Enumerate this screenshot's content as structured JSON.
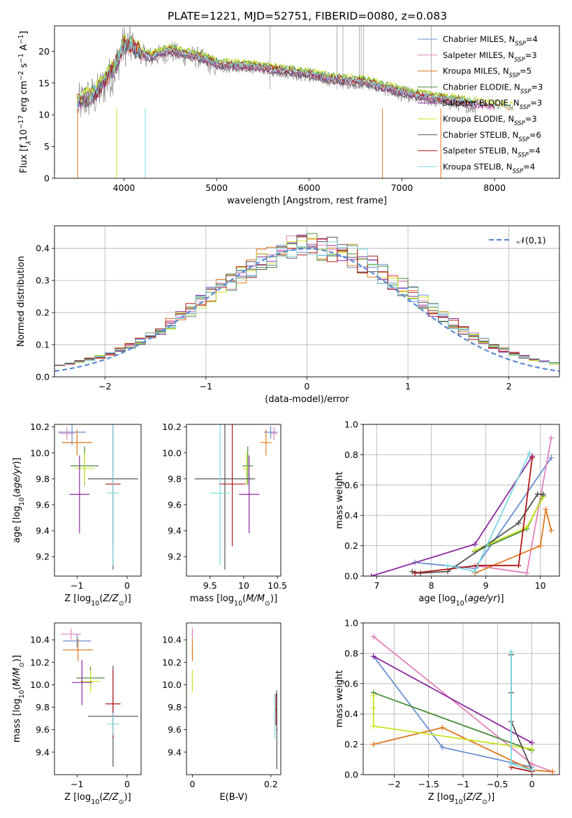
{
  "figure": {
    "title": "PLATE=1221, MJD=52751, FIBERID=0080, z=0.083"
  },
  "chart_data": [
    {
      "id": "spectrum",
      "type": "line",
      "title": "PLATE=1221, MJD=52751, FIBERID=0080, z=0.083",
      "xlabel": "wavelength [Angstrom, rest frame]",
      "ylabel": "Flux [f_λ10^-17 erg cm^-2 s^-1 A^-1]",
      "xlim": [
        3250,
        8700
      ],
      "ylim": [
        0,
        24
      ],
      "xticks": [
        4000,
        5000,
        6000,
        7000,
        8000
      ],
      "yticks": [
        0,
        5,
        10,
        15,
        20
      ],
      "grid": false,
      "legend_position": "top-right",
      "data_spectrum": {
        "color": "#808080",
        "x": [
          3500,
          3600,
          3700,
          3800,
          3900,
          4000,
          4100,
          4200,
          4300,
          4400,
          4500,
          4600,
          4800,
          5000,
          5200,
          5400,
          5600,
          5800,
          6000,
          6200,
          6400,
          6600,
          6800,
          7000,
          7200,
          7400,
          7600,
          7800
        ],
        "y": [
          11.5,
          12.5,
          13,
          15,
          17,
          21,
          20.5,
          19.5,
          19,
          19.5,
          20,
          19.5,
          19,
          17.5,
          17.5,
          17.5,
          17,
          16.5,
          16,
          15.5,
          15,
          15,
          14,
          13,
          12.5,
          12,
          11.5,
          11
        ]
      },
      "series": [
        {
          "name": "Chabrier MILES, N_SSP=4",
          "color": "#6a8ed0"
        },
        {
          "name": "Salpeter MILES, N_SSP=3",
          "color": "#e083bb"
        },
        {
          "name": "Kroupa MILES, N_SSP=5",
          "color": "#e0781e"
        },
        {
          "name": "Chabrier ELODIE, N_SSP=3",
          "color": "#4a8c3a"
        },
        {
          "name": "Salpeter ELODIE, N_SSP=3",
          "color": "#8b2aa0"
        },
        {
          "name": "Kroupa ELODIE, N_SSP=3",
          "color": "#c8e61e"
        },
        {
          "name": "Chabrier STELIB, N_SSP=6",
          "color": "#555555"
        },
        {
          "name": "Salpeter STELIB, N_SSP=4",
          "color": "#b01818"
        },
        {
          "name": "Kroupa STELIB, N_SSP=4",
          "color": "#7fd8e0"
        }
      ],
      "model": {
        "x": [
          3500,
          3600,
          3700,
          3800,
          3900,
          4000,
          4100,
          4200,
          4300,
          4400,
          4500,
          4600,
          4800,
          5000,
          5200,
          5400,
          5600,
          5800,
          6000,
          6200,
          6400,
          6600,
          6800,
          7000,
          7200,
          7400,
          7600,
          7800,
          8000,
          8200,
          8400
        ],
        "y": [
          12,
          12.8,
          13.5,
          15.5,
          17.5,
          21,
          20.8,
          19.5,
          19.2,
          19.8,
          20.2,
          19.8,
          19.2,
          18,
          17.8,
          17.6,
          17.2,
          16.8,
          16.4,
          15.8,
          15.4,
          15.2,
          14.4,
          13.6,
          13,
          12.6,
          12.2,
          11.8,
          11.4,
          11,
          10.6
        ]
      }
    },
    {
      "id": "residuals",
      "type": "step",
      "xlabel": "(data-model)/error",
      "ylabel": "Normed distribution",
      "xlim": [
        -2.5,
        2.5
      ],
      "ylim": [
        0,
        0.47
      ],
      "xticks": [
        -2,
        -1,
        0,
        1,
        2
      ],
      "yticks": [
        0.0,
        0.1,
        0.2,
        0.3,
        0.4
      ],
      "grid": true,
      "legend_position": "top-right",
      "reference": {
        "name": "𝒩(0,1)",
        "color": "#5b8ad0"
      }
    },
    {
      "id": "age_vs_Z",
      "type": "errorbar",
      "xlabel": "Z [log10(Z/Z⊙)]",
      "ylabel": "age  [log10(age/yr)]",
      "xlim": [
        -1.45,
        0.28
      ],
      "ylim": [
        9.05,
        10.22
      ],
      "xticks": [
        -1,
        0
      ],
      "yticks": [
        9.2,
        9.4,
        9.6,
        9.8,
        10.0,
        10.2
      ],
      "points": [
        {
          "color": "#6a8ed0",
          "x": -1.1,
          "xerr": 0.28,
          "y": 10.16,
          "yerr": 0.1
        },
        {
          "color": "#e083bb",
          "x": -1.2,
          "xerr": 0.15,
          "y": 10.15,
          "yerr": 0.05
        },
        {
          "color": "#e0781e",
          "x": -1.0,
          "xerr": 0.3,
          "y": 10.08,
          "yerr": 0.1
        },
        {
          "color": "#4a8c3a",
          "x": -0.85,
          "xerr": 0.28,
          "y": 9.9,
          "yerr": 0.15
        },
        {
          "color": "#c8e61e",
          "x": -0.85,
          "xerr": 0.2,
          "y": 9.88,
          "yerr": 0.12
        },
        {
          "color": "#8b2aa0",
          "x": -0.95,
          "xerr": 0.2,
          "y": 9.68,
          "yerr": 0.3
        },
        {
          "color": "#555555",
          "x": -0.28,
          "xerr": 0.5,
          "y": 9.8,
          "yerr": 0.7
        },
        {
          "color": "#b01818",
          "x": -0.28,
          "xerr": 0.15,
          "y": 9.76,
          "yerr": 0.48
        },
        {
          "color": "#7fd8e0",
          "x": -0.28,
          "xerr": 0.12,
          "y": 9.69,
          "yerr": 0.56
        }
      ]
    },
    {
      "id": "age_vs_mass",
      "type": "errorbar",
      "xlabel": "mass [log10(M/M⊙)]",
      "ylabel": "",
      "xlim": [
        9.15,
        10.55
      ],
      "ylim": [
        9.05,
        10.22
      ],
      "xticks": [
        9.5,
        10.0,
        10.5
      ],
      "yticks": [
        9.2,
        9.4,
        9.6,
        9.8,
        10.0,
        10.2
      ],
      "points": [
        {
          "color": "#6a8ed0",
          "x": 10.4,
          "xerr": 0.1,
          "y": 10.16,
          "yerr": 0.05
        },
        {
          "color": "#e083bb",
          "x": 10.45,
          "xerr": 0.05,
          "y": 10.15,
          "yerr": 0.05
        },
        {
          "color": "#e0781e",
          "x": 10.33,
          "xerr": 0.08,
          "y": 10.08,
          "yerr": 0.1
        },
        {
          "color": "#4a8c3a",
          "x": 10.06,
          "xerr": 0.08,
          "y": 9.9,
          "yerr": 0.15
        },
        {
          "color": "#c8e61e",
          "x": 10.04,
          "xerr": 0.05,
          "y": 9.88,
          "yerr": 0.12
        },
        {
          "color": "#8b2aa0",
          "x": 10.08,
          "xerr": 0.15,
          "y": 9.68,
          "yerr": 0.3
        },
        {
          "color": "#555555",
          "x": 9.72,
          "xerr": 0.45,
          "y": 9.8,
          "yerr": 0.7
        },
        {
          "color": "#b01818",
          "x": 9.83,
          "xerr": 0.2,
          "y": 9.76,
          "yerr": 0.48
        },
        {
          "color": "#7fd8e0",
          "x": 9.65,
          "xerr": 0.15,
          "y": 9.69,
          "yerr": 0.56
        }
      ]
    },
    {
      "id": "weight_vs_age",
      "type": "line",
      "xlabel": "age  [log10(age/yr)]",
      "ylabel": "mass weight",
      "xlim": [
        6.75,
        10.35
      ],
      "ylim": [
        0,
        1.0
      ],
      "xticks": [
        7,
        8,
        9,
        10
      ],
      "yticks": [
        0.0,
        0.2,
        0.4,
        0.6,
        0.8,
        1.0
      ],
      "grid": true,
      "series": [
        {
          "color": "#6a8ed0",
          "x": [
            7.7,
            8.8,
            10.2
          ],
          "y": [
            0.09,
            0.05,
            0.78
          ]
        },
        {
          "color": "#e083bb",
          "x": [
            8.8,
            9.75,
            10.2
          ],
          "y": [
            0.07,
            0.02,
            0.91
          ]
        },
        {
          "color": "#e0781e",
          "x": [
            8.8,
            10.0,
            10.1,
            10.2
          ],
          "y": [
            0.02,
            0.2,
            0.44,
            0.3
          ]
        },
        {
          "color": "#4a8c3a",
          "x": [
            8.8,
            9.75,
            10.05
          ],
          "y": [
            0.16,
            0.31,
            0.53
          ]
        },
        {
          "color": "#8b2aa0",
          "x": [
            6.9,
            8.8,
            9.85
          ],
          "y": [
            0.0,
            0.21,
            0.79
          ]
        },
        {
          "color": "#c8e61e",
          "x": [
            8.8,
            9.75,
            10.05
          ],
          "y": [
            0.17,
            0.32,
            0.52
          ]
        },
        {
          "color": "#555555",
          "x": [
            7.65,
            7.8,
            8.3,
            9.6,
            9.95,
            10.05
          ],
          "y": [
            0.03,
            0.02,
            0.03,
            0.35,
            0.54,
            0.54
          ]
        },
        {
          "color": "#b01818",
          "x": [
            7.7,
            8.85,
            9.6,
            9.85
          ],
          "y": [
            0.02,
            0.07,
            0.07,
            0.78
          ]
        },
        {
          "color": "#7fd8e0",
          "x": [
            8.3,
            8.8,
            9.8
          ],
          "y": [
            0.07,
            0.03,
            0.81
          ]
        }
      ]
    },
    {
      "id": "mass_vs_Z",
      "type": "errorbar",
      "xlabel": "Z [log10(Z/Z⊙)]",
      "ylabel": "mass [log10(M/M⊙)]",
      "xlim": [
        -1.45,
        0.28
      ],
      "ylim": [
        9.2,
        10.55
      ],
      "xticks": [
        -1,
        0
      ],
      "yticks": [
        9.4,
        9.6,
        9.8,
        10.0,
        10.2,
        10.4
      ],
      "points": [
        {
          "color": "#6a8ed0",
          "x": -1.0,
          "xerr": 0.28,
          "y": 10.39,
          "yerr": 0.06
        },
        {
          "color": "#e083bb",
          "x": -1.12,
          "xerr": 0.2,
          "y": 10.45,
          "yerr": 0.05
        },
        {
          "color": "#e0781e",
          "x": -0.98,
          "xerr": 0.3,
          "y": 10.31,
          "yerr": 0.1
        },
        {
          "color": "#4a8c3a",
          "x": -0.73,
          "xerr": 0.28,
          "y": 10.06,
          "yerr": 0.1
        },
        {
          "color": "#c8e61e",
          "x": -0.73,
          "xerr": 0.2,
          "y": 10.03,
          "yerr": 0.1
        },
        {
          "color": "#8b2aa0",
          "x": -0.9,
          "xerr": 0.2,
          "y": 10.02,
          "yerr": 0.2
        },
        {
          "color": "#555555",
          "x": -0.28,
          "xerr": 0.5,
          "y": 9.72,
          "yerr": 0.45
        },
        {
          "color": "#b01818",
          "x": -0.28,
          "xerr": 0.15,
          "y": 9.83,
          "yerr": 0.3
        },
        {
          "color": "#7fd8e0",
          "x": -0.28,
          "xerr": 0.12,
          "y": 9.65,
          "yerr": 0.1
        }
      ]
    },
    {
      "id": "mass_vs_EBV",
      "type": "errorbar",
      "xlabel": "E(B-V)",
      "ylabel": "",
      "xlim": [
        -0.015,
        0.225
      ],
      "ylim": [
        9.2,
        10.55
      ],
      "xticks": [
        0.0,
        0.2
      ],
      "yticks": [
        9.4,
        9.6,
        9.8,
        10.0,
        10.2,
        10.4
      ],
      "points": [
        {
          "color": "#e083bb",
          "x": 0.0,
          "xerr": 0.002,
          "y": 10.45,
          "yerr": 0.06
        },
        {
          "color": "#e0781e",
          "x": 0.0,
          "xerr": 0.002,
          "y": 10.31,
          "yerr": 0.1
        },
        {
          "color": "#c8e61e",
          "x": 0.0,
          "xerr": 0.002,
          "y": 10.03,
          "yerr": 0.1
        },
        {
          "color": "#555555",
          "x": 0.215,
          "xerr": 0.002,
          "y": 9.6,
          "yerr": 0.35
        },
        {
          "color": "#b01818",
          "x": 0.213,
          "xerr": 0.002,
          "y": 9.78,
          "yerr": 0.14
        },
        {
          "color": "#7fd8e0",
          "x": 0.21,
          "xerr": 0.002,
          "y": 9.72,
          "yerr": 0.2
        }
      ]
    },
    {
      "id": "weight_vs_Z",
      "type": "line",
      "xlabel": "Z [log10(Z/Z⊙)]",
      "ylabel": "mass weight",
      "xlim": [
        -2.45,
        0.4
      ],
      "ylim": [
        0,
        1.0
      ],
      "xticks": [
        -2.0,
        -1.5,
        -1.0,
        -0.5,
        0.0
      ],
      "yticks": [
        0.0,
        0.2,
        0.4,
        0.6,
        0.8,
        1.0
      ],
      "grid": true,
      "series": [
        {
          "color": "#6a8ed0",
          "x": [
            -2.3,
            -1.3,
            0.0
          ],
          "y": [
            0.78,
            0.18,
            0.05
          ]
        },
        {
          "color": "#e083bb",
          "x": [
            -2.3,
            0.0,
            0.3
          ],
          "y": [
            0.91,
            0.07,
            0.02
          ]
        },
        {
          "color": "#e0781e",
          "x": [
            -2.3,
            -1.3,
            0.0,
            0.3
          ],
          "y": [
            0.2,
            0.31,
            0.03,
            0.02
          ]
        },
        {
          "color": "#4a8c3a",
          "x": [
            -2.3,
            0.0
          ],
          "y": [
            0.54,
            0.16
          ]
        },
        {
          "color": "#8b2aa0",
          "x": [
            -2.3,
            0.0
          ],
          "y": [
            0.78,
            0.21
          ]
        },
        {
          "color": "#c8e61e",
          "x": [
            -2.3,
            -2.3,
            -2.3,
            0.0
          ],
          "y": [
            0.52,
            0.44,
            0.32,
            0.17
          ]
        },
        {
          "color": "#555555",
          "x": [
            -0.3,
            -0.3,
            -0.3,
            0.0
          ],
          "y": [
            0.79,
            0.54,
            0.35,
            0.03
          ]
        },
        {
          "color": "#b01818",
          "x": [
            -0.3,
            0.0
          ],
          "y": [
            0.05,
            0.02
          ]
        },
        {
          "color": "#7fd8e0",
          "x": [
            -0.3,
            -0.3,
            0.0
          ],
          "y": [
            0.81,
            0.07,
            0.03
          ]
        }
      ]
    }
  ]
}
